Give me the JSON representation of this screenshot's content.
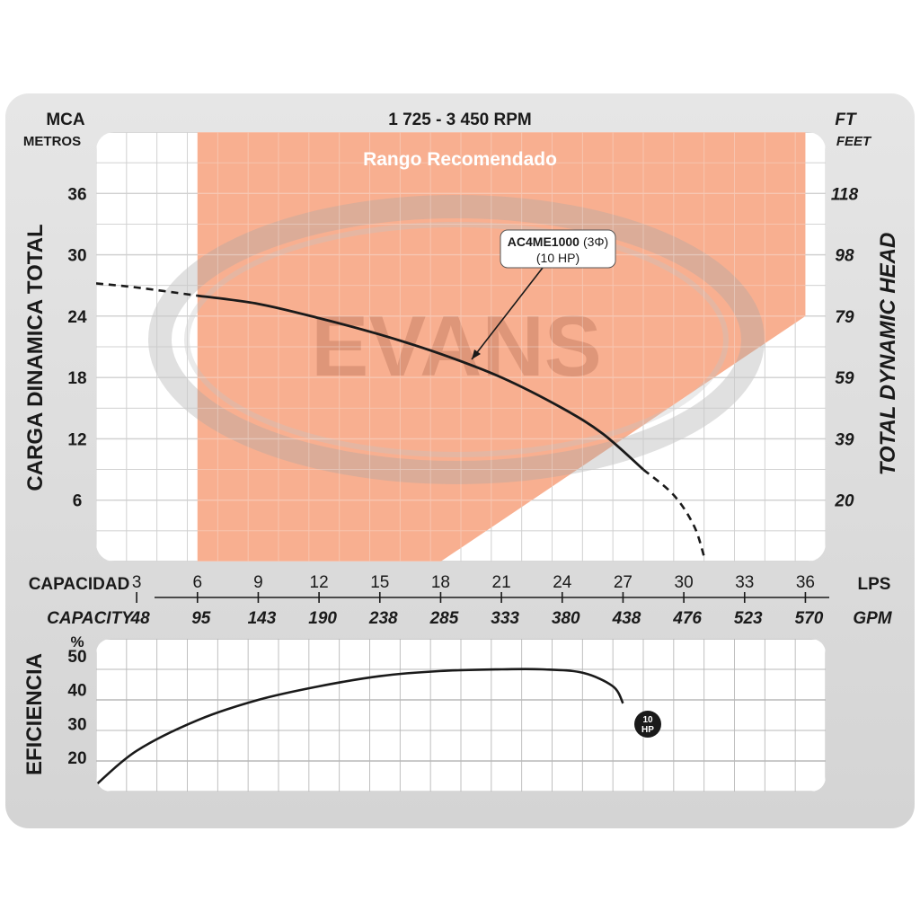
{
  "header": {
    "rpm_title": "1 725 - 3 450 RPM",
    "left_unit": "MCA",
    "left_unit_sub": "METROS",
    "right_unit": "FT",
    "right_unit_sub": "FEET",
    "left_axis_title": "CARGA  DINAMICA  TOTAL",
    "right_axis_title": "TOTAL  DYNAMIC  HEAD",
    "range_label": "Rango Recomendado",
    "watermark": "EVANS"
  },
  "x_axis": {
    "capacity_label_es": "CAPACIDAD",
    "capacity_label_en": "CAPACITY",
    "lps_unit": "LPS",
    "gpm_unit": "GPM",
    "lps_ticks": [
      "3",
      "6",
      "9",
      "12",
      "15",
      "18",
      "21",
      "24",
      "27",
      "30",
      "33",
      "36"
    ],
    "gpm_ticks": [
      "48",
      "95",
      "143",
      "190",
      "238",
      "285",
      "333",
      "380",
      "438",
      "476",
      "523",
      "570"
    ]
  },
  "efficiency_axis": {
    "title": "EFICIENCIA",
    "unit": "%",
    "ticks": [
      "20",
      "30",
      "40",
      "50"
    ]
  },
  "annotation": {
    "model": "AC4ME1000",
    "phase": "(3Φ)",
    "power": "(10 HP)"
  },
  "badge": {
    "line1": "10",
    "line2": "HP"
  },
  "colors": {
    "recommended_range": "#f7a887",
    "grid": "#b8b8b8",
    "curve": "#1a1a1a",
    "frame": "#dcdcdc"
  },
  "chart_data": [
    {
      "type": "line",
      "title": "1 725 - 3 450 RPM",
      "xlabel": "CAPACIDAD / CAPACITY (LPS)",
      "ylabel": "CARGA DINAMICA TOTAL (MCA)",
      "xlim": [
        1,
        37
      ],
      "ylim": [
        0,
        42
      ],
      "x_ticks": [
        3,
        6,
        9,
        12,
        15,
        18,
        21,
        24,
        27,
        30,
        33,
        36
      ],
      "y_ticks_left_mca": [
        6,
        12,
        18,
        24,
        30,
        36
      ],
      "y_ticks_right_ft": [
        20,
        39,
        59,
        79,
        98,
        118
      ],
      "recommended_range": {
        "x_start": 6,
        "x_end": 36
      },
      "series": [
        {
          "name": "AC4ME1000 (3Φ) (10 HP)",
          "x": [
            6,
            9,
            12,
            15,
            18,
            21,
            24,
            26,
            28
          ],
          "y": [
            26,
            25.2,
            23.8,
            22.2,
            20.3,
            18,
            15,
            12.5,
            9
          ]
        },
        {
          "name": "dashed-extension-low",
          "x": [
            1,
            3,
            6
          ],
          "y": [
            27.2,
            26.8,
            26
          ]
        },
        {
          "name": "dashed-extension-high",
          "x": [
            28,
            29.5,
            30.5,
            31
          ],
          "y": [
            9,
            6.5,
            3.5,
            0.5
          ]
        }
      ]
    },
    {
      "type": "line",
      "title": "",
      "xlabel": "CAPACIDAD / CAPACITY (LPS)",
      "ylabel": "EFICIENCIA (%)",
      "xlim": [
        1,
        37
      ],
      "ylim": [
        10,
        55
      ],
      "y_ticks": [
        20,
        30,
        40,
        50
      ],
      "series": [
        {
          "name": "10 HP",
          "x": [
            1,
            3,
            6,
            9,
            12,
            15,
            18,
            21,
            23,
            25,
            26.5,
            27
          ],
          "y": [
            12,
            22,
            31,
            37,
            41,
            44,
            45.5,
            46,
            46,
            45,
            41,
            36
          ]
        }
      ]
    }
  ]
}
